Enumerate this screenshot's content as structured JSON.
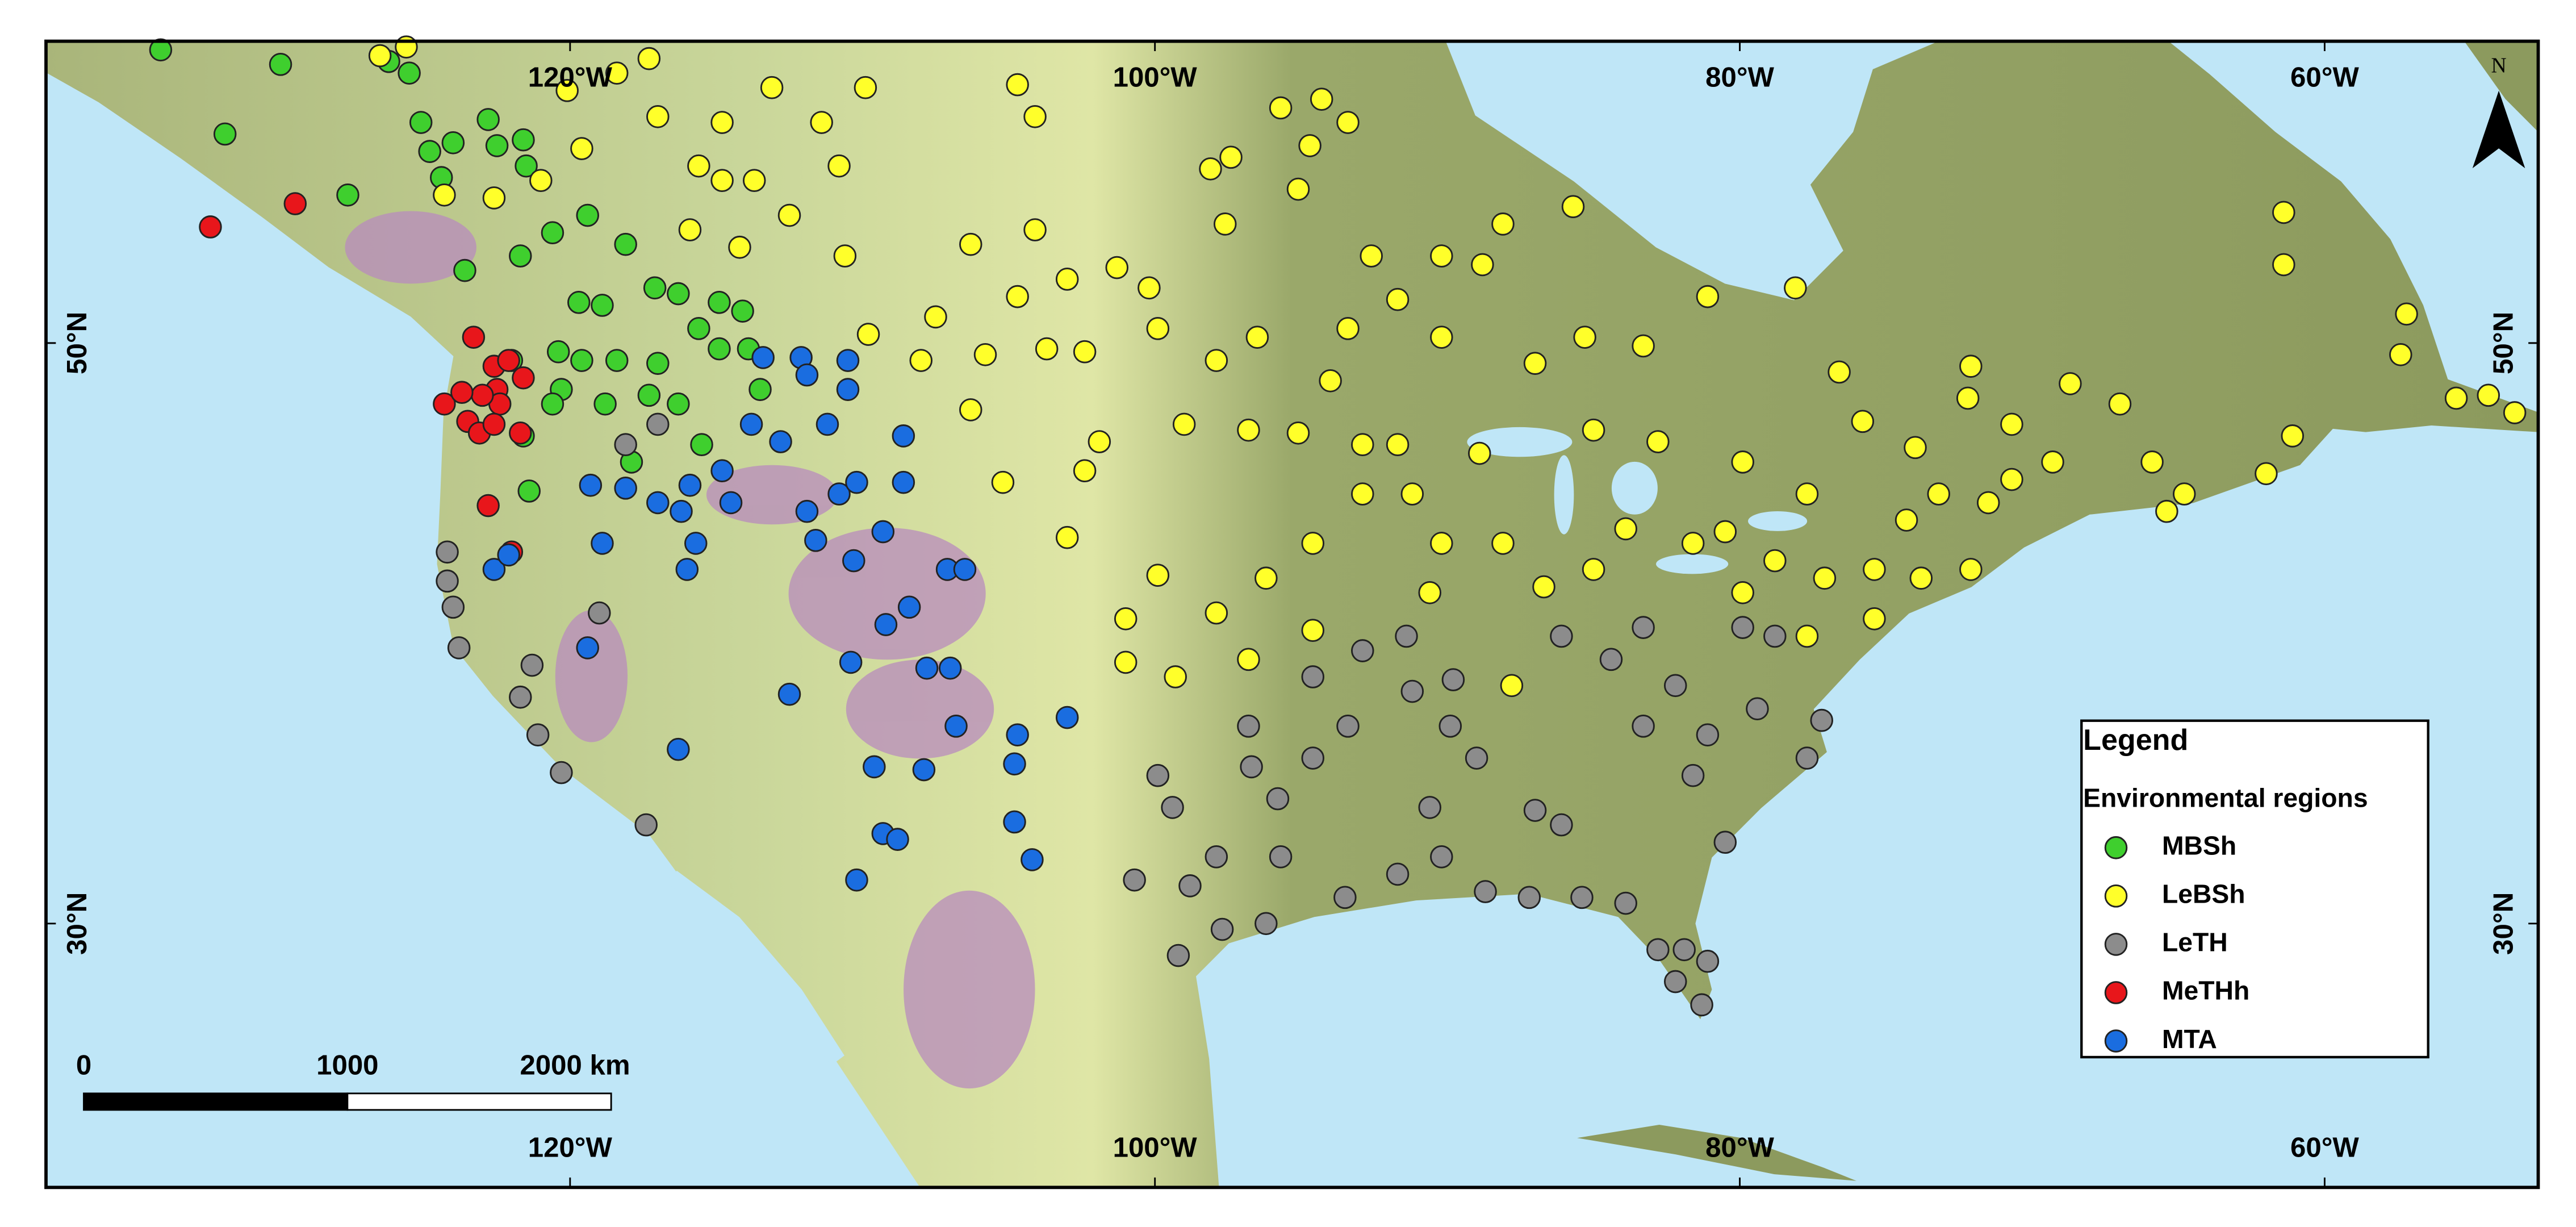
{
  "map": {
    "lon_labels": [
      {
        "value": -120,
        "label": "120°W"
      },
      {
        "value": -100,
        "label": "100°W"
      },
      {
        "value": -80,
        "label": "80°W"
      },
      {
        "value": -60,
        "label": "60°W"
      }
    ],
    "lat_labels": [
      {
        "value": 50,
        "label": "50°N"
      },
      {
        "value": 30,
        "label": "30°N"
      }
    ],
    "north": "N",
    "legend": {
      "title": "Legend",
      "subtitle": "Environmental regions"
    },
    "scale_bar": {
      "ticks": [
        {
          "value": 0,
          "label": "0"
        },
        {
          "value": 1000,
          "label": "1000"
        },
        {
          "value": 2000,
          "label": "2000 km"
        }
      ]
    },
    "regions": [
      {
        "name": "MBSh",
        "color": "#3fcf2e",
        "points": [
          [
            -134.0,
            60.1
          ],
          [
            -129.9,
            59.6
          ],
          [
            -126.2,
            59.7
          ],
          [
            -125.5,
            59.3
          ],
          [
            -131.8,
            57.2
          ],
          [
            -127.6,
            55.1
          ],
          [
            -125.1,
            57.6
          ],
          [
            -124.8,
            56.6
          ],
          [
            -124.0,
            56.9
          ],
          [
            -124.4,
            55.7
          ],
          [
            -122.8,
            57.7
          ],
          [
            -122.5,
            56.8
          ],
          [
            -121.6,
            57.0
          ],
          [
            -121.5,
            56.1
          ],
          [
            -123.6,
            52.5
          ],
          [
            -121.7,
            53.0
          ],
          [
            -120.6,
            53.8
          ],
          [
            -119.4,
            54.4
          ],
          [
            -118.1,
            53.4
          ],
          [
            -119.7,
            51.4
          ],
          [
            -118.9,
            51.3
          ],
          [
            -117.1,
            51.9
          ],
          [
            -116.3,
            51.7
          ],
          [
            -114.9,
            51.4
          ],
          [
            -114.1,
            51.1
          ],
          [
            -120.4,
            49.7
          ],
          [
            -119.6,
            49.4
          ],
          [
            -118.4,
            49.4
          ],
          [
            -117.0,
            49.3
          ],
          [
            -114.9,
            49.8
          ],
          [
            -113.9,
            49.8
          ],
          [
            -120.3,
            48.4
          ],
          [
            -120.6,
            47.9
          ],
          [
            -118.8,
            47.9
          ],
          [
            -117.3,
            48.2
          ],
          [
            -116.3,
            47.9
          ],
          [
            -115.5,
            46.5
          ],
          [
            -117.9,
            45.9
          ],
          [
            -121.4,
            44.9
          ],
          [
            -121.6,
            46.8
          ],
          [
            -122.0,
            49.4
          ],
          [
            -113.5,
            48.4
          ],
          [
            -115.6,
            50.5
          ]
        ]
      },
      {
        "name": "LeBSh",
        "color": "#ffff2a",
        "points": [
          [
            -126.5,
            59.9
          ],
          [
            -125.6,
            60.2
          ],
          [
            -118.4,
            59.3
          ],
          [
            -117.3,
            59.8
          ],
          [
            -113.1,
            58.8
          ],
          [
            -111.4,
            57.6
          ],
          [
            -109.9,
            58.8
          ],
          [
            -104.7,
            58.9
          ],
          [
            -104.1,
            57.8
          ],
          [
            -95.7,
            58.1
          ],
          [
            -94.3,
            58.4
          ],
          [
            -93.4,
            57.6
          ],
          [
            -94.7,
            56.8
          ],
          [
            -98.1,
            56.0
          ],
          [
            -97.4,
            56.4
          ],
          [
            -95.1,
            55.3
          ],
          [
            -97.6,
            54.1
          ],
          [
            -85.7,
            54.7
          ],
          [
            -88.1,
            54.1
          ],
          [
            -92.6,
            53.0
          ],
          [
            -90.2,
            53.0
          ],
          [
            -88.8,
            52.7
          ],
          [
            -101.3,
            52.6
          ],
          [
            -104.1,
            53.9
          ],
          [
            -106.3,
            53.4
          ],
          [
            -107.5,
            50.9
          ],
          [
            -105.8,
            49.6
          ],
          [
            -103.7,
            49.8
          ],
          [
            -102.4,
            49.7
          ],
          [
            -99.9,
            50.5
          ],
          [
            -97.9,
            49.4
          ],
          [
            -96.5,
            50.2
          ],
          [
            -93.4,
            50.5
          ],
          [
            -91.7,
            51.5
          ],
          [
            -90.2,
            50.2
          ],
          [
            -87.0,
            49.3
          ],
          [
            -85.3,
            50.2
          ],
          [
            -83.3,
            49.9
          ],
          [
            -81.1,
            51.6
          ],
          [
            -78.1,
            51.9
          ],
          [
            -76.6,
            49.0
          ],
          [
            -72.1,
            49.2
          ],
          [
            -75.8,
            47.3
          ],
          [
            -72.2,
            48.1
          ],
          [
            -70.7,
            47.2
          ],
          [
            -68.7,
            48.6
          ],
          [
            -67.0,
            47.9
          ],
          [
            -65.9,
            45.9
          ],
          [
            -64.8,
            44.8
          ],
          [
            -61.4,
            54.5
          ],
          [
            -61.4,
            52.7
          ],
          [
            -57.2,
            51.0
          ],
          [
            -57.4,
            49.6
          ],
          [
            -55.5,
            48.1
          ],
          [
            -54.4,
            48.2
          ],
          [
            -53.5,
            47.6
          ],
          [
            -61.1,
            46.8
          ],
          [
            -62.0,
            45.5
          ],
          [
            -65.4,
            44.2
          ],
          [
            -69.3,
            45.9
          ],
          [
            -70.7,
            45.3
          ],
          [
            -71.5,
            44.5
          ],
          [
            -73.2,
            44.8
          ],
          [
            -74.3,
            43.9
          ],
          [
            -75.4,
            42.2
          ],
          [
            -77.1,
            41.9
          ],
          [
            -78.8,
            42.5
          ],
          [
            -80.5,
            43.5
          ],
          [
            -81.6,
            43.1
          ],
          [
            -83.9,
            43.6
          ],
          [
            -85.0,
            42.2
          ],
          [
            -86.7,
            41.6
          ],
          [
            -88.1,
            43.1
          ],
          [
            -90.2,
            43.1
          ],
          [
            -91.2,
            44.8
          ],
          [
            -92.9,
            44.8
          ],
          [
            -94.6,
            43.1
          ],
          [
            -96.2,
            41.9
          ],
          [
            -97.9,
            40.7
          ],
          [
            -99.3,
            38.5
          ],
          [
            -101.0,
            39.0
          ],
          [
            -101.0,
            40.5
          ],
          [
            -99.9,
            42.0
          ],
          [
            -96.8,
            39.1
          ],
          [
            -94.6,
            40.1
          ],
          [
            -103.0,
            43.3
          ],
          [
            -105.2,
            45.2
          ],
          [
            -102.4,
            45.6
          ],
          [
            -101.9,
            46.6
          ],
          [
            -106.3,
            47.7
          ],
          [
            -108.0,
            49.4
          ],
          [
            -109.8,
            50.3
          ],
          [
            -110.6,
            53.0
          ],
          [
            -110.8,
            56.1
          ],
          [
            -114.8,
            55.6
          ],
          [
            -114.2,
            53.3
          ],
          [
            -115.9,
            53.9
          ],
          [
            -115.6,
            56.1
          ],
          [
            -117.0,
            57.8
          ],
          [
            -121.0,
            55.6
          ],
          [
            -122.6,
            55.0
          ],
          [
            -124.3,
            55.1
          ],
          [
            -119.6,
            56.7
          ],
          [
            -120.1,
            58.7
          ],
          [
            -114.8,
            57.6
          ],
          [
            -112.5,
            54.4
          ],
          [
            -113.7,
            55.6
          ],
          [
            -104.7,
            51.6
          ],
          [
            -103.0,
            52.2
          ],
          [
            -100.2,
            51.9
          ],
          [
            -96.8,
            47.0
          ],
          [
            -94.0,
            48.7
          ],
          [
            -91.7,
            46.5
          ],
          [
            -88.9,
            46.2
          ],
          [
            -85.0,
            47.0
          ],
          [
            -82.8,
            46.6
          ],
          [
            -79.9,
            45.9
          ],
          [
            -77.7,
            44.8
          ],
          [
            -79.9,
            41.4
          ],
          [
            -77.7,
            39.9
          ],
          [
            -75.4,
            40.5
          ],
          [
            -73.8,
            41.9
          ],
          [
            -72.1,
            42.2
          ],
          [
            -74.0,
            46.4
          ],
          [
            -87.8,
            38.2
          ],
          [
            -90.6,
            41.4
          ],
          [
            -92.9,
            46.5
          ],
          [
            -95.1,
            46.9
          ],
          [
            -99.0,
            47.2
          ]
        ]
      },
      {
        "name": "LeTH",
        "color": "#8c8c8c",
        "points": [
          [
            -124.2,
            42.8
          ],
          [
            -124.2,
            41.8
          ],
          [
            -124.0,
            40.9
          ],
          [
            -123.8,
            39.5
          ],
          [
            -121.3,
            38.9
          ],
          [
            -121.7,
            37.8
          ],
          [
            -121.1,
            36.5
          ],
          [
            -120.3,
            35.2
          ],
          [
            -117.4,
            33.4
          ],
          [
            -119.0,
            40.7
          ],
          [
            -118.1,
            46.5
          ],
          [
            -117.0,
            47.2
          ],
          [
            -100.7,
            31.5
          ],
          [
            -99.2,
            28.9
          ],
          [
            -99.9,
            35.1
          ],
          [
            -99.4,
            34.0
          ],
          [
            -98.8,
            31.3
          ],
          [
            -97.9,
            32.3
          ],
          [
            -97.7,
            29.8
          ],
          [
            -96.2,
            30.0
          ],
          [
            -96.8,
            36.8
          ],
          [
            -95.8,
            34.3
          ],
          [
            -94.6,
            35.7
          ],
          [
            -93.4,
            36.8
          ],
          [
            -91.4,
            39.9
          ],
          [
            -91.2,
            38.0
          ],
          [
            -89.8,
            38.4
          ],
          [
            -89.9,
            36.8
          ],
          [
            -89.0,
            35.7
          ],
          [
            -90.6,
            34.0
          ],
          [
            -90.2,
            32.3
          ],
          [
            -88.7,
            31.1
          ],
          [
            -87.0,
            33.9
          ],
          [
            -87.2,
            30.9
          ],
          [
            -85.4,
            30.9
          ],
          [
            -83.9,
            30.7
          ],
          [
            -82.8,
            29.1
          ],
          [
            -81.9,
            29.1
          ],
          [
            -81.1,
            28.7
          ],
          [
            -81.3,
            27.2
          ],
          [
            -82.2,
            28.0
          ],
          [
            -86.1,
            39.9
          ],
          [
            -84.4,
            39.1
          ],
          [
            -83.3,
            40.2
          ],
          [
            -82.2,
            38.2
          ],
          [
            -83.3,
            36.8
          ],
          [
            -81.1,
            36.5
          ],
          [
            -79.9,
            40.2
          ],
          [
            -78.8,
            39.9
          ],
          [
            -79.4,
            37.4
          ],
          [
            -77.7,
            35.7
          ],
          [
            -77.2,
            37.0
          ],
          [
            -80.5,
            32.8
          ],
          [
            -81.6,
            35.1
          ],
          [
            -86.1,
            33.4
          ],
          [
            -92.9,
            39.4
          ],
          [
            -94.6,
            38.5
          ],
          [
            -96.7,
            35.4
          ],
          [
            -91.7,
            31.7
          ],
          [
            -93.5,
            30.9
          ],
          [
            -95.7,
            32.3
          ]
        ]
      },
      {
        "name": "MeTHh",
        "color": "#e8161b",
        "points": [
          [
            -132.3,
            54.0
          ],
          [
            -129.4,
            54.8
          ],
          [
            -123.3,
            50.2
          ],
          [
            -122.6,
            49.2
          ],
          [
            -122.1,
            49.4
          ],
          [
            -121.6,
            48.8
          ],
          [
            -122.5,
            48.4
          ],
          [
            -122.4,
            47.9
          ],
          [
            -123.0,
            48.2
          ],
          [
            -124.3,
            47.9
          ],
          [
            -123.7,
            48.3
          ],
          [
            -123.5,
            47.3
          ],
          [
            -123.1,
            46.9
          ],
          [
            -122.6,
            47.2
          ],
          [
            -121.7,
            46.9
          ],
          [
            -122.8,
            44.4
          ],
          [
            -122.0,
            42.8
          ]
        ]
      },
      {
        "name": "MTA",
        "color": "#1a6de0",
        "points": [
          [
            -113.4,
            49.5
          ],
          [
            -112.1,
            49.5
          ],
          [
            -111.9,
            48.9
          ],
          [
            -110.5,
            49.4
          ],
          [
            -110.5,
            48.4
          ],
          [
            -111.2,
            47.2
          ],
          [
            -112.8,
            46.6
          ],
          [
            -113.8,
            47.2
          ],
          [
            -114.8,
            45.6
          ],
          [
            -115.9,
            45.1
          ],
          [
            -116.2,
            44.2
          ],
          [
            -117.0,
            44.5
          ],
          [
            -118.1,
            45.0
          ],
          [
            -119.3,
            45.1
          ],
          [
            -118.9,
            43.1
          ],
          [
            -116.0,
            42.2
          ],
          [
            -115.7,
            43.1
          ],
          [
            -114.5,
            44.5
          ],
          [
            -111.9,
            44.2
          ],
          [
            -111.6,
            43.2
          ],
          [
            -110.8,
            44.8
          ],
          [
            -110.2,
            45.2
          ],
          [
            -109.3,
            43.5
          ],
          [
            -108.6,
            46.8
          ],
          [
            -108.6,
            45.2
          ],
          [
            -110.3,
            42.5
          ],
          [
            -109.2,
            40.3
          ],
          [
            -108.4,
            40.9
          ],
          [
            -107.1,
            42.2
          ],
          [
            -106.5,
            42.2
          ],
          [
            -110.4,
            39.0
          ],
          [
            -112.5,
            37.9
          ],
          [
            -107.8,
            38.8
          ],
          [
            -107.0,
            38.8
          ],
          [
            -106.8,
            36.8
          ],
          [
            -104.7,
            36.5
          ],
          [
            -103.0,
            37.1
          ],
          [
            -116.3,
            36.0
          ],
          [
            -109.6,
            35.4
          ],
          [
            -107.9,
            35.3
          ],
          [
            -104.8,
            35.5
          ],
          [
            -109.3,
            33.1
          ],
          [
            -108.8,
            32.9
          ],
          [
            -104.8,
            33.5
          ],
          [
            -104.2,
            32.2
          ],
          [
            -110.2,
            31.5
          ],
          [
            -122.6,
            42.2
          ],
          [
            -122.1,
            42.7
          ],
          [
            -119.4,
            39.5
          ]
        ]
      }
    ]
  }
}
